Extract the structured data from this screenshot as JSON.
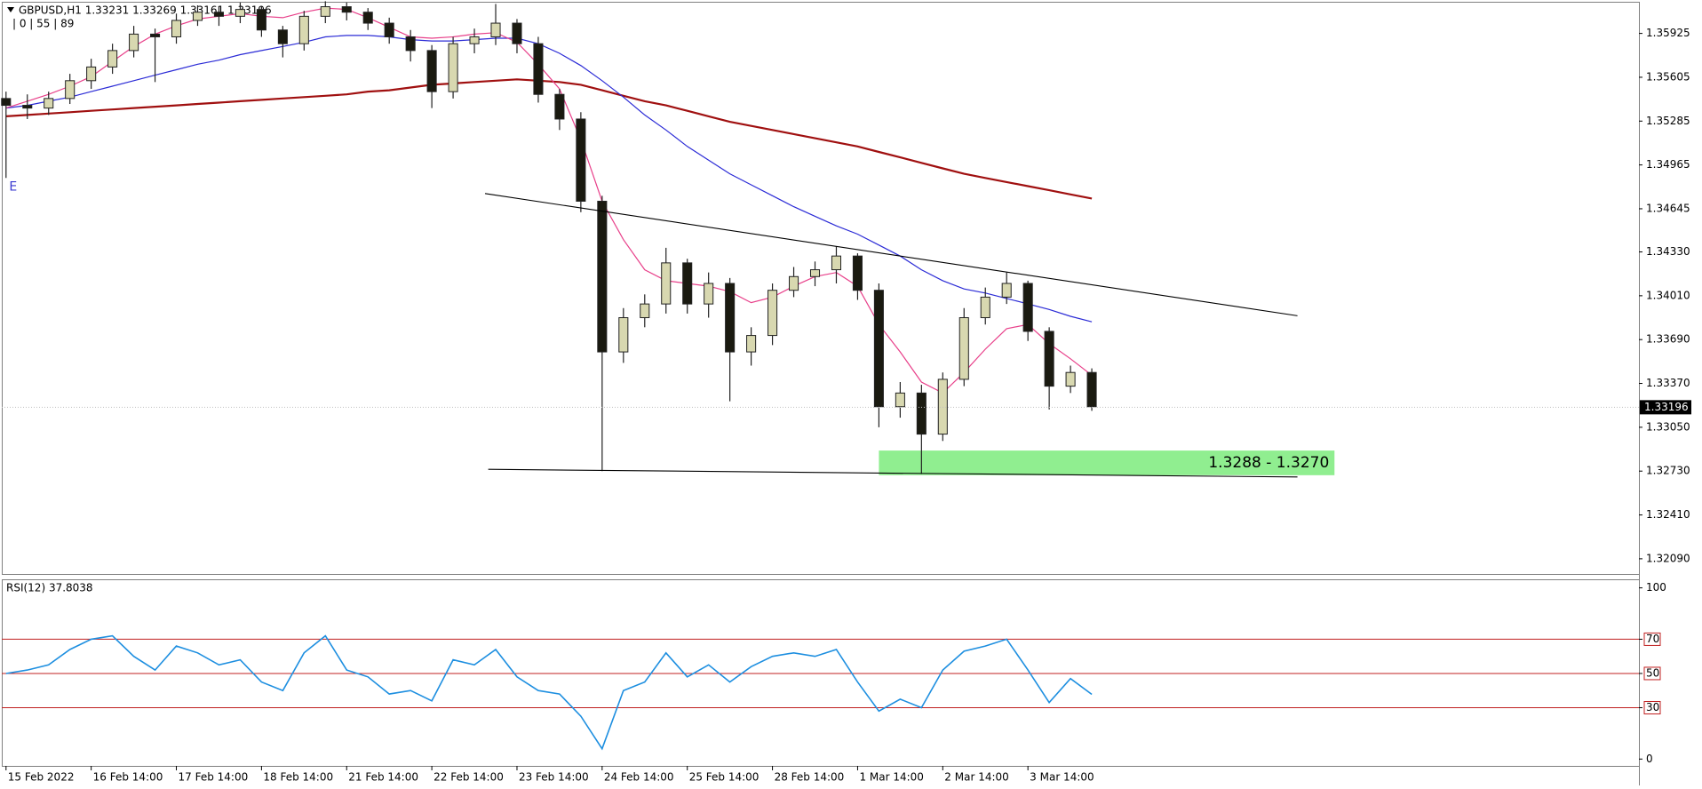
{
  "chart_data": [
    {
      "type": "candlestick",
      "title": "GBPUSD,H1  1.33231 1.33269 1.33161 1.33196",
      "subtitle": "| 0 | 55 | 89",
      "categories": [
        "15 Feb 2022",
        null,
        null,
        null,
        "16 Feb 14:00",
        null,
        null,
        null,
        "17 Feb 14:00",
        null,
        null,
        null,
        "18 Feb 14:00",
        null,
        null,
        null,
        "21 Feb 14:00",
        null,
        null,
        null,
        "22 Feb 14:00",
        null,
        null,
        null,
        "23 Feb 14:00",
        null,
        null,
        null,
        "24 Feb 14:00",
        null,
        null,
        null,
        "25 Feb 14:00",
        null,
        null,
        null,
        "28 Feb 14:00",
        null,
        null,
        null,
        "1 Mar 14:00",
        null,
        null,
        null,
        "2 Mar 14:00",
        null,
        null,
        null,
        "3 Mar 14:00",
        null,
        null,
        null
      ],
      "open": [
        1.3545,
        1.354,
        1.3538,
        1.3545,
        1.3558,
        1.3568,
        1.358,
        1.3592,
        1.359,
        1.3602,
        1.3608,
        1.3605,
        1.361,
        1.3595,
        1.3585,
        1.3605,
        1.3612,
        1.3608,
        1.36,
        1.359,
        1.358,
        1.355,
        1.3585,
        1.359,
        1.36,
        1.3585,
        1.3548,
        1.353,
        1.347,
        1.336,
        1.3385,
        1.3395,
        1.3425,
        1.3395,
        1.341,
        1.336,
        1.3372,
        1.3405,
        1.3415,
        1.342,
        1.343,
        1.3405,
        1.332,
        1.333,
        1.33,
        1.334,
        1.3385,
        1.34,
        1.341,
        1.3375,
        1.3335,
        1.3345
      ],
      "high": [
        1.355,
        1.3548,
        1.355,
        1.3563,
        1.3574,
        1.3585,
        1.3598,
        1.3596,
        1.3607,
        1.3613,
        1.3612,
        1.3615,
        1.3612,
        1.3598,
        1.3609,
        1.3616,
        1.3615,
        1.3611,
        1.3604,
        1.3595,
        1.3584,
        1.359,
        1.3596,
        1.3614,
        1.3603,
        1.359,
        1.3552,
        1.3535,
        1.3474,
        1.3392,
        1.3402,
        1.3436,
        1.3428,
        1.3418,
        1.3414,
        1.3378,
        1.341,
        1.3422,
        1.3426,
        1.3437,
        1.3432,
        1.341,
        1.3338,
        1.3336,
        1.3345,
        1.3392,
        1.3407,
        1.3418,
        1.3412,
        1.3378,
        1.335,
        1.3348
      ],
      "low": [
        1.3487,
        1.353,
        1.3533,
        1.3541,
        1.3552,
        1.3563,
        1.3575,
        1.3557,
        1.3585,
        1.3598,
        1.3598,
        1.36,
        1.359,
        1.3575,
        1.358,
        1.36,
        1.3602,
        1.3595,
        1.3585,
        1.3572,
        1.3538,
        1.3545,
        1.3578,
        1.3584,
        1.3578,
        1.3542,
        1.3522,
        1.3462,
        1.3273,
        1.3352,
        1.3378,
        1.3388,
        1.3388,
        1.3385,
        1.3324,
        1.335,
        1.3365,
        1.34,
        1.3408,
        1.341,
        1.3398,
        1.3305,
        1.3312,
        1.3271,
        1.3295,
        1.3335,
        1.338,
        1.3395,
        1.3368,
        1.3318,
        1.333,
        1.3317
      ],
      "close": [
        1.354,
        1.3538,
        1.3545,
        1.3558,
        1.3568,
        1.358,
        1.3592,
        1.359,
        1.3602,
        1.3608,
        1.3605,
        1.361,
        1.3595,
        1.3585,
        1.3605,
        1.3612,
        1.3608,
        1.36,
        1.359,
        1.358,
        1.355,
        1.3585,
        1.359,
        1.36,
        1.3585,
        1.3548,
        1.353,
        1.347,
        1.336,
        1.3385,
        1.3395,
        1.3425,
        1.3395,
        1.341,
        1.336,
        1.3372,
        1.3405,
        1.3415,
        1.342,
        1.343,
        1.3405,
        1.332,
        1.333,
        1.33,
        1.334,
        1.3385,
        1.34,
        1.341,
        1.3375,
        1.3335,
        1.3345,
        1.332
      ],
      "up_color": "#d8d8b0",
      "down_color": "#1a1a10",
      "wick_color": "#222222",
      "series": [
        {
          "color": "#a01010",
          "values": [
            1.3532,
            1.3533,
            1.3534,
            1.3535,
            1.3536,
            1.3537,
            1.3538,
            1.3539,
            1.354,
            1.3541,
            1.3542,
            1.3543,
            1.3544,
            1.3545,
            1.3546,
            1.3547,
            1.3548,
            1.355,
            1.3551,
            1.3553,
            1.3555,
            1.3556,
            1.3557,
            1.3558,
            1.3559,
            1.3558,
            1.3557,
            1.3555,
            1.3551,
            1.3547,
            1.3543,
            1.354,
            1.3536,
            1.3532,
            1.3528,
            1.3525,
            1.3522,
            1.3519,
            1.3516,
            1.3513,
            1.351,
            1.3506,
            1.3502,
            1.3498,
            1.3494,
            1.349,
            1.3487,
            1.3484,
            1.3481,
            1.3478,
            1.3475,
            1.3472
          ]
        },
        {
          "color": "#2b2bd6",
          "values": [
            1.3538,
            1.354,
            1.3543,
            1.3546,
            1.355,
            1.3554,
            1.3558,
            1.3562,
            1.3566,
            1.357,
            1.3573,
            1.3577,
            1.358,
            1.3583,
            1.3586,
            1.359,
            1.3591,
            1.3591,
            1.359,
            1.3588,
            1.3587,
            1.3587,
            1.3588,
            1.3589,
            1.3589,
            1.3585,
            1.3578,
            1.3569,
            1.3558,
            1.3546,
            1.3533,
            1.3522,
            1.351,
            1.35,
            1.349,
            1.3482,
            1.3474,
            1.3466,
            1.3459,
            1.3452,
            1.3446,
            1.3438,
            1.343,
            1.342,
            1.3412,
            1.3406,
            1.3403,
            1.3399,
            1.3395,
            1.3391,
            1.3386,
            1.3382
          ]
        },
        {
          "color": "#e8408a",
          "values": [
            1.3538,
            1.3543,
            1.3548,
            1.3554,
            1.3561,
            1.3572,
            1.3583,
            1.3592,
            1.3598,
            1.3603,
            1.3605,
            1.3607,
            1.3605,
            1.3604,
            1.3608,
            1.3611,
            1.361,
            1.3604,
            1.3597,
            1.359,
            1.3589,
            1.359,
            1.3592,
            1.3593,
            1.3586,
            1.357,
            1.3552,
            1.3515,
            1.347,
            1.3442,
            1.342,
            1.3412,
            1.341,
            1.3408,
            1.3404,
            1.3396,
            1.34,
            1.3408,
            1.3415,
            1.3418,
            1.3408,
            1.338,
            1.336,
            1.3338,
            1.333,
            1.3345,
            1.3362,
            1.3377,
            1.338,
            1.3366,
            1.3355,
            1.3343
          ]
        }
      ],
      "xlim": [
        -0.2,
        76.7
      ],
      "ylim": [
        1.31979,
        1.36156
      ],
      "yticks": [
        1.35925,
        1.35605,
        1.35285,
        1.34965,
        1.34645,
        {
          "value": 1.3433,
          "label": "1.34330"
        },
        {
          "value": 1.3401,
          "label": "1.34010"
        },
        {
          "value": 1.3369,
          "label": "1.33690"
        },
        {
          "value": 1.3337,
          "label": "1.33370"
        },
        {
          "value": 1.3305,
          "label": "1.33050"
        },
        {
          "value": 1.3273,
          "label": "1.32730"
        },
        {
          "value": 1.3241,
          "label": "1.32410"
        },
        {
          "value": 1.3209,
          "label": "1.32090"
        }
      ],
      "grid": false,
      "last_price": 1.33196,
      "trendlines": [
        {
          "x": [
            22.5,
            60.66
          ],
          "y": [
            1.34756,
            1.33864
          ],
          "color": "#000000"
        },
        {
          "x": [
            22.65,
            60.66
          ],
          "y": [
            1.32743,
            1.32687
          ],
          "color": "#000000"
        }
      ],
      "zone": {
        "x": [
          41,
          62.4
        ],
        "y": [
          1.3288,
          1.327
        ],
        "label": "1.3288 - 1.3270",
        "color": "#90ee90"
      },
      "marker": {
        "index": 0,
        "label": "E",
        "color": "#3a3ad0"
      }
    },
    {
      "type": "line",
      "title": "RSI(12) 37.8038",
      "values": [
        50,
        52,
        55,
        64,
        70,
        72,
        60,
        52,
        66,
        62,
        55,
        58,
        45,
        40,
        62,
        72,
        52,
        48,
        38,
        40,
        34,
        58,
        55,
        64,
        48,
        40,
        38,
        25,
        6,
        40,
        45,
        62,
        48,
        55,
        45,
        54,
        60,
        62,
        60,
        64,
        45,
        28,
        35,
        30,
        52,
        63,
        66,
        70,
        52,
        33,
        47,
        37.8
      ],
      "color": "#1e8fe0",
      "ylim": [
        -4,
        105
      ],
      "yticks": [
        100,
        70,
        50,
        30,
        0
      ],
      "levels": [
        70,
        50,
        30
      ],
      "level_color": "#c02020"
    }
  ]
}
